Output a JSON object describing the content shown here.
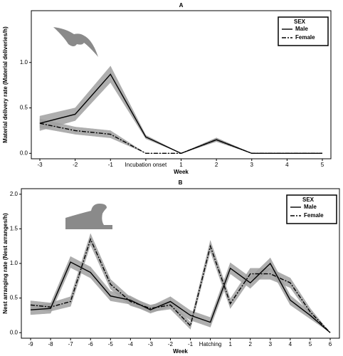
{
  "chart_data": [
    {
      "type": "line",
      "title": "A",
      "xlabel": "Week",
      "ylabel": "Material delivery rate (Material deliveries/h)",
      "categories": [
        "-3",
        "-2",
        "-1",
        "Incubation onset",
        "1",
        "2",
        "3",
        "4",
        "5"
      ],
      "ylim": [
        -0.06,
        1.57
      ],
      "yticks": [
        {
          "value": 0,
          "label": "0.0"
        },
        0.5,
        {
          "value": 1,
          "label": "1.0"
        }
      ],
      "legend_title": "SEX",
      "legend_location": "upper right",
      "band_color": "#a0a0a0",
      "series": [
        {
          "name": "Male",
          "color": "#000000",
          "dash": "solid",
          "values": [
            0.33,
            0.43,
            0.87,
            0.18,
            0,
            0.15,
            0,
            0,
            0
          ],
          "error": [
            0.08,
            0.07,
            0.09,
            0.02,
            0,
            0.02,
            0,
            0,
            0
          ]
        },
        {
          "name": "Female",
          "color": "#000000",
          "dash": "dashed",
          "values": [
            0.33,
            0.25,
            0.21,
            0,
            0,
            0.15,
            0,
            0,
            0
          ],
          "error": [
            0.05,
            0.04,
            0.04,
            0,
            0,
            0.02,
            0,
            0,
            0
          ]
        }
      ]
    },
    {
      "type": "line",
      "title": "B",
      "xlabel": "Week",
      "ylabel": "Nest arranging rate (Nest arranges/h)",
      "categories": [
        "-9",
        "-8",
        "-7",
        "-6",
        "-5",
        "-4",
        "-3",
        "-2",
        "-1",
        "Hatching",
        "1",
        "2",
        "3",
        "4",
        "5",
        "6"
      ],
      "ylim": [
        -0.08,
        2.08
      ],
      "yticks": [
        {
          "value": 0,
          "label": "0.0"
        },
        0.5,
        {
          "value": 1,
          "label": "1.0"
        },
        1.5,
        {
          "value": 2,
          "label": "2.0"
        }
      ],
      "legend_title": "SEX",
      "legend_location": "upper right",
      "band_color": "#a0a0a0",
      "series": [
        {
          "name": "Male",
          "color": "#000000",
          "dash": "solid",
          "values": [
            0.33,
            0.35,
            1.02,
            0.87,
            0.53,
            0.47,
            0.33,
            0.45,
            0.25,
            0.15,
            0.93,
            0.72,
            1.0,
            0.47,
            0.25,
            0
          ],
          "error": [
            0.07,
            0.07,
            0.08,
            0.08,
            0.07,
            0.06,
            0.05,
            0.07,
            0.07,
            0.07,
            0.08,
            0.08,
            0.08,
            0.07,
            0.05,
            0
          ]
        },
        {
          "name": "Female",
          "color": "#000000",
          "dash": "dashed",
          "values": [
            0.4,
            0.37,
            0.45,
            1.35,
            0.7,
            0.45,
            0.35,
            0.4,
            0.1,
            1.25,
            0.42,
            0.85,
            0.85,
            0.72,
            0.3,
            0
          ],
          "error": [
            0.06,
            0.06,
            0.07,
            0.08,
            0.07,
            0.06,
            0.05,
            0.06,
            0.05,
            0.08,
            0.07,
            0.08,
            0.08,
            0.07,
            0.05,
            0
          ]
        }
      ]
    }
  ]
}
